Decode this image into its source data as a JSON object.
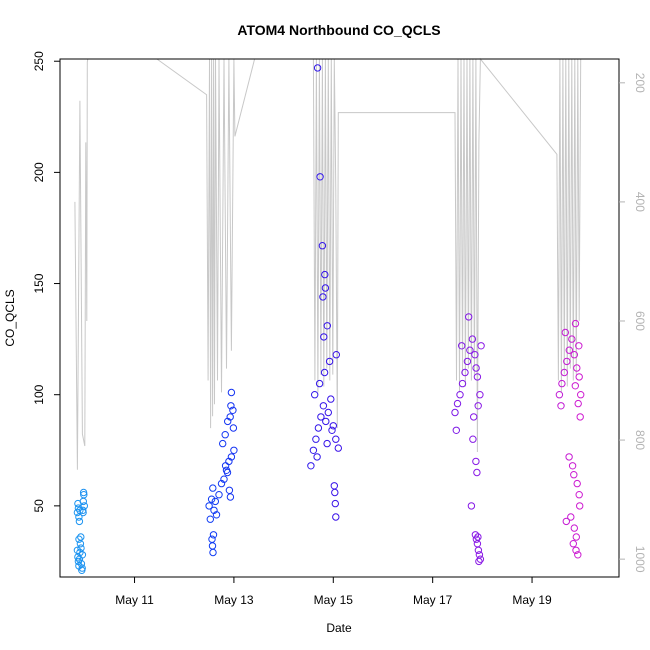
{
  "chart_data": {
    "type": "scatter",
    "title": "ATOM4 Northbound CO_QCLS",
    "xlabel": "Date",
    "ylabel": "CO_QCLS",
    "x_unit": "date (2018)",
    "xlim": [
      "2018-05-09 12:00",
      "2018-05-20 18:00"
    ],
    "ylim": [
      18,
      251
    ],
    "x_ticks": [
      "May 11",
      "May 13",
      "May 15",
      "May 17",
      "May 19"
    ],
    "y_ticks": [
      50,
      100,
      150,
      200,
      250
    ],
    "secondary_axis": {
      "side": "right",
      "label": "",
      "reversed": true,
      "lim": [
        1030,
        160
      ],
      "ticks": [
        200,
        400,
        600,
        800,
        1000
      ],
      "color": "#b3b3b3"
    },
    "grid": false,
    "legend": "none",
    "colors": {
      "points_gradient": [
        "#1fa2f0",
        "#0a3ff5",
        "#3a10e8",
        "#8a19e6",
        "#e81cc8"
      ],
      "altitude_line": "#c8c8c8"
    },
    "series": [
      {
        "points": [
          [
            "2018-05-09 20:24",
            47
          ],
          [
            "2018-05-09 20:38",
            51
          ],
          [
            "2018-05-09 20:52",
            49
          ],
          [
            "2018-05-09 21:07",
            45
          ],
          [
            "2018-05-09 21:21",
            43
          ],
          [
            "2018-05-09 21:36",
            48
          ],
          [
            "2018-05-09 20:24",
            30
          ],
          [
            "2018-05-09 20:38",
            27
          ],
          [
            "2018-05-09 20:52",
            25
          ],
          [
            "2018-05-09 21:07",
            23
          ],
          [
            "2018-05-09 21:21",
            26
          ],
          [
            "2018-05-09 21:36",
            29
          ],
          [
            "2018-05-09 21:50",
            33
          ],
          [
            "2018-05-09 22:04",
            36
          ],
          [
            "2018-05-09 22:19",
            24
          ],
          [
            "2018-05-09 22:33",
            21
          ],
          [
            "2018-05-09 22:48",
            28
          ],
          [
            "2018-05-09 22:09",
            31
          ],
          [
            "2018-05-09 21:12",
            35
          ],
          [
            "2018-05-09 22:43",
            22
          ],
          [
            "2018-05-09 23:02",
            48
          ],
          [
            "2018-05-09 23:16",
            52
          ],
          [
            "2018-05-09 23:31",
            55
          ],
          [
            "2018-05-09 23:45",
            50
          ],
          [
            "2018-05-09 23:24",
            56
          ],
          [
            "2018-05-09 23:09",
            47
          ]
        ]
      },
      {
        "points": [
          [
            "2018-05-12 12:00",
            50
          ],
          [
            "2018-05-12 13:12",
            53
          ],
          [
            "2018-05-12 14:24",
            48
          ],
          [
            "2018-05-12 15:36",
            46
          ],
          [
            "2018-05-12 16:48",
            55
          ],
          [
            "2018-05-12 18:00",
            60
          ],
          [
            "2018-05-12 12:36",
            44
          ],
          [
            "2018-05-12 13:48",
            58
          ],
          [
            "2018-05-12 15:00",
            52
          ],
          [
            "2018-05-12 13:26",
            35
          ],
          [
            "2018-05-12 13:40",
            32
          ],
          [
            "2018-05-12 13:55",
            29
          ],
          [
            "2018-05-12 14:09",
            37
          ],
          [
            "2018-05-12 19:12",
            62
          ],
          [
            "2018-05-12 20:24",
            66
          ],
          [
            "2018-05-12 21:36",
            70
          ],
          [
            "2018-05-12 22:48",
            72
          ],
          [
            "2018-05-13 00:00",
            75
          ],
          [
            "2018-05-12 20:00",
            68
          ],
          [
            "2018-05-12 18:36",
            78
          ],
          [
            "2018-05-12 19:48",
            82
          ],
          [
            "2018-05-12 21:00",
            88
          ],
          [
            "2018-05-12 22:12",
            90
          ],
          [
            "2018-05-12 22:34",
            95
          ],
          [
            "2018-05-12 22:48",
            101
          ],
          [
            "2018-05-12 23:31",
            93
          ],
          [
            "2018-05-12 23:45",
            85
          ],
          [
            "2018-05-12 20:53",
            65
          ],
          [
            "2018-05-12 21:50",
            57
          ],
          [
            "2018-05-12 22:19",
            54
          ]
        ]
      },
      {
        "points": [
          [
            "2018-05-14 13:12",
            68
          ],
          [
            "2018-05-14 14:24",
            75
          ],
          [
            "2018-05-14 15:36",
            80
          ],
          [
            "2018-05-14 16:48",
            85
          ],
          [
            "2018-05-14 18:00",
            90
          ],
          [
            "2018-05-14 19:12",
            95
          ],
          [
            "2018-05-14 20:24",
            88
          ],
          [
            "2018-05-14 21:36",
            92
          ],
          [
            "2018-05-14 22:48",
            98
          ],
          [
            "2018-05-15 00:00",
            86
          ],
          [
            "2018-05-15 01:12",
            80
          ],
          [
            "2018-05-15 02:24",
            76
          ],
          [
            "2018-05-14 15:00",
            100
          ],
          [
            "2018-05-14 17:24",
            105
          ],
          [
            "2018-05-14 19:48",
            110
          ],
          [
            "2018-05-14 22:12",
            115
          ],
          [
            "2018-05-15 01:26",
            118
          ],
          [
            "2018-05-14 16:12",
            72
          ],
          [
            "2018-05-14 21:00",
            78
          ],
          [
            "2018-05-14 23:24",
            84
          ],
          [
            "2018-05-14 16:26",
            247
          ],
          [
            "2018-05-14 17:38",
            198
          ],
          [
            "2018-05-14 18:43",
            167
          ],
          [
            "2018-05-14 19:55",
            154
          ],
          [
            "2018-05-14 20:10",
            148
          ],
          [
            "2018-05-14 18:58",
            144
          ],
          [
            "2018-05-14 21:07",
            131
          ],
          [
            "2018-05-14 19:26",
            126
          ],
          [
            "2018-05-15 00:29",
            59
          ],
          [
            "2018-05-15 00:43",
            56
          ],
          [
            "2018-05-15 00:58",
            51
          ],
          [
            "2018-05-15 01:12",
            45
          ]
        ]
      },
      {
        "points": [
          [
            "2018-05-17 10:48",
            92
          ],
          [
            "2018-05-17 12:00",
            96
          ],
          [
            "2018-05-17 13:12",
            100
          ],
          [
            "2018-05-17 14:24",
            105
          ],
          [
            "2018-05-17 15:36",
            110
          ],
          [
            "2018-05-17 16:48",
            115
          ],
          [
            "2018-05-17 18:00",
            120
          ],
          [
            "2018-05-17 19:12",
            125
          ],
          [
            "2018-05-17 20:24",
            118
          ],
          [
            "2018-05-17 21:36",
            108
          ],
          [
            "2018-05-17 22:48",
            100
          ],
          [
            "2018-05-17 11:24",
            84
          ],
          [
            "2018-05-17 19:48",
            90
          ],
          [
            "2018-05-17 17:24",
            135
          ],
          [
            "2018-05-17 21:00",
            112
          ],
          [
            "2018-05-17 23:24",
            122
          ],
          [
            "2018-05-17 14:00",
            122
          ],
          [
            "2018-05-17 22:00",
            95
          ],
          [
            "2018-05-17 19:26",
            80
          ],
          [
            "2018-05-17 20:53",
            70
          ],
          [
            "2018-05-17 21:22",
            65
          ],
          [
            "2018-05-17 18:43",
            50
          ],
          [
            "2018-05-17 20:38",
            37
          ],
          [
            "2018-05-17 21:07",
            35
          ],
          [
            "2018-05-17 21:36",
            33
          ],
          [
            "2018-05-17 22:05",
            30
          ],
          [
            "2018-05-17 22:34",
            28
          ],
          [
            "2018-05-17 23:02",
            26
          ],
          [
            "2018-05-17 22:19",
            25
          ],
          [
            "2018-05-17 21:50",
            36
          ]
        ]
      },
      {
        "points": [
          [
            "2018-05-19 13:12",
            100
          ],
          [
            "2018-05-19 14:24",
            105
          ],
          [
            "2018-05-19 15:36",
            110
          ],
          [
            "2018-05-19 16:48",
            115
          ],
          [
            "2018-05-19 18:00",
            120
          ],
          [
            "2018-05-19 19:12",
            125
          ],
          [
            "2018-05-19 20:24",
            118
          ],
          [
            "2018-05-19 21:36",
            112
          ],
          [
            "2018-05-19 22:48",
            108
          ],
          [
            "2018-05-19 23:31",
            100
          ],
          [
            "2018-05-19 14:00",
            95
          ],
          [
            "2018-05-19 21:00",
            132
          ],
          [
            "2018-05-19 22:19",
            96
          ],
          [
            "2018-05-19 23:16",
            90
          ],
          [
            "2018-05-19 20:53",
            104
          ],
          [
            "2018-05-19 22:34",
            122
          ],
          [
            "2018-05-19 16:05",
            128
          ],
          [
            "2018-05-19 17:53",
            72
          ],
          [
            "2018-05-19 19:34",
            68
          ],
          [
            "2018-05-19 20:10",
            64
          ],
          [
            "2018-05-19 21:50",
            60
          ],
          [
            "2018-05-19 22:48",
            55
          ],
          [
            "2018-05-19 23:02",
            50
          ],
          [
            "2018-05-19 18:43",
            45
          ],
          [
            "2018-05-19 16:34",
            43
          ],
          [
            "2018-05-19 20:24",
            40
          ],
          [
            "2018-05-19 21:22",
            36
          ],
          [
            "2018-05-19 19:55",
            33
          ],
          [
            "2018-05-19 21:14",
            30
          ],
          [
            "2018-05-19 22:05",
            28
          ]
        ]
      }
    ],
    "altitude_profile": [
      [
        "2018-05-09 19:12",
        400
      ],
      [
        "2018-05-09 20:24",
        850
      ],
      [
        "2018-05-09 21:36",
        230
      ],
      [
        "2018-05-09 22:48",
        790
      ],
      [
        "2018-05-10 00:00",
        810
      ],
      [
        "2018-05-10 00:29",
        300
      ],
      [
        "2018-05-10 00:58",
        600
      ],
      [
        "2018-05-10 01:12",
        165
      ],
      [
        "2018-05-10 01:26",
        160
      ],
      [
        "2018-05-11 10:48",
        160
      ],
      [
        "2018-05-12 10:48",
        220
      ],
      [
        "2018-05-12 11:31",
        700
      ],
      [
        "2018-05-12 12:14",
        160
      ],
      [
        "2018-05-12 12:43",
        780
      ],
      [
        "2018-05-12 13:12",
        160
      ],
      [
        "2018-05-12 13:41",
        760
      ],
      [
        "2018-05-12 14:10",
        160
      ],
      [
        "2018-05-12 14:38",
        740
      ],
      [
        "2018-05-12 15:07",
        160
      ],
      [
        "2018-05-12 16:05",
        700
      ],
      [
        "2018-05-12 16:48",
        160
      ],
      [
        "2018-05-12 18:00",
        720
      ],
      [
        "2018-05-12 19:12",
        160
      ],
      [
        "2018-05-12 20:24",
        680
      ],
      [
        "2018-05-12 21:36",
        160
      ],
      [
        "2018-05-12 22:48",
        650
      ],
      [
        "2018-05-13 00:00",
        160
      ],
      [
        "2018-05-13 00:29",
        290
      ],
      [
        "2018-05-13 10:00",
        160
      ],
      [
        "2018-05-14 14:24",
        160
      ],
      [
        "2018-05-14 15:07",
        700
      ],
      [
        "2018-05-14 15:50",
        160
      ],
      [
        "2018-05-14 16:34",
        720
      ],
      [
        "2018-05-14 17:17",
        160
      ],
      [
        "2018-05-14 18:00",
        690
      ],
      [
        "2018-05-14 18:43",
        160
      ],
      [
        "2018-05-14 19:26",
        710
      ],
      [
        "2018-05-14 20:10",
        160
      ],
      [
        "2018-05-14 20:53",
        680
      ],
      [
        "2018-05-14 21:36",
        160
      ],
      [
        "2018-05-14 22:19",
        700
      ],
      [
        "2018-05-14 23:02",
        160
      ],
      [
        "2018-05-14 23:46",
        690
      ],
      [
        "2018-05-15 00:29",
        160
      ],
      [
        "2018-05-15 01:12",
        380
      ],
      [
        "2018-05-15 01:55",
        780
      ],
      [
        "2018-05-15 02:24",
        250
      ],
      [
        "2018-05-17 10:48",
        250
      ],
      [
        "2018-05-17 11:31",
        700
      ],
      [
        "2018-05-17 12:14",
        160
      ],
      [
        "2018-05-17 12:58",
        720
      ],
      [
        "2018-05-17 13:41",
        160
      ],
      [
        "2018-05-17 14:24",
        690
      ],
      [
        "2018-05-17 15:07",
        160
      ],
      [
        "2018-05-17 15:50",
        710
      ],
      [
        "2018-05-17 16:34",
        160
      ],
      [
        "2018-05-17 17:17",
        680
      ],
      [
        "2018-05-17 18:00",
        160
      ],
      [
        "2018-05-17 18:43",
        700
      ],
      [
        "2018-05-17 19:26",
        160
      ],
      [
        "2018-05-17 20:10",
        690
      ],
      [
        "2018-05-17 20:53",
        160
      ],
      [
        "2018-05-17 21:36",
        820
      ],
      [
        "2018-05-17 22:19",
        300
      ],
      [
        "2018-05-17 23:02",
        160
      ],
      [
        "2018-05-19 12:00",
        320
      ],
      [
        "2018-05-19 12:43",
        700
      ],
      [
        "2018-05-19 13:26",
        160
      ],
      [
        "2018-05-19 14:10",
        720
      ],
      [
        "2018-05-19 14:53",
        160
      ],
      [
        "2018-05-19 15:36",
        690
      ],
      [
        "2018-05-19 16:19",
        160
      ],
      [
        "2018-05-19 17:02",
        710
      ],
      [
        "2018-05-19 17:46",
        160
      ],
      [
        "2018-05-19 18:29",
        680
      ],
      [
        "2018-05-19 19:12",
        160
      ],
      [
        "2018-05-19 19:55",
        700
      ],
      [
        "2018-05-19 20:38",
        160
      ],
      [
        "2018-05-19 21:22",
        690
      ],
      [
        "2018-05-19 22:05",
        160
      ],
      [
        "2018-05-19 22:48",
        600
      ],
      [
        "2018-05-19 23:31",
        160
      ]
    ]
  }
}
